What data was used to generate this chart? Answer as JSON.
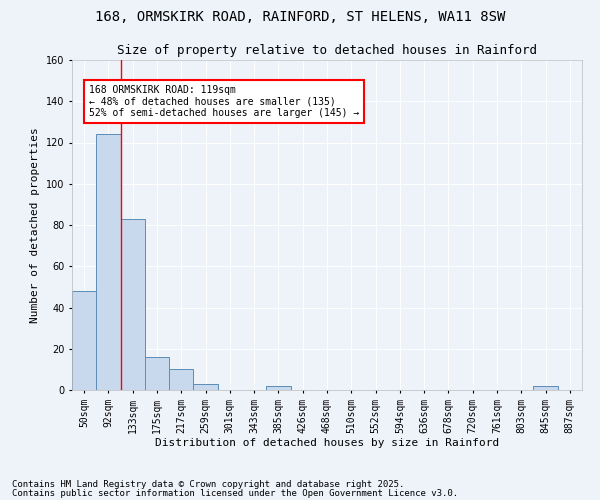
{
  "title": "168, ORMSKIRK ROAD, RAINFORD, ST HELENS, WA11 8SW",
  "subtitle": "Size of property relative to detached houses in Rainford",
  "xlabel": "Distribution of detached houses by size in Rainford",
  "ylabel": "Number of detached properties",
  "bar_color": "#c9d9ed",
  "bar_edge_color": "#5b8db8",
  "background_color": "#eef2f9",
  "grid_color": "#ffffff",
  "categories": [
    "50sqm",
    "92sqm",
    "133sqm",
    "175sqm",
    "217sqm",
    "259sqm",
    "301sqm",
    "343sqm",
    "385sqm",
    "426sqm",
    "468sqm",
    "510sqm",
    "552sqm",
    "594sqm",
    "636sqm",
    "678sqm",
    "720sqm",
    "761sqm",
    "803sqm",
    "845sqm",
    "887sqm"
  ],
  "values": [
    48,
    124,
    83,
    16,
    10,
    3,
    0,
    0,
    2,
    0,
    0,
    0,
    0,
    0,
    0,
    0,
    0,
    0,
    0,
    2,
    0
  ],
  "red_line_x": 1.5,
  "annotation_text": "168 ORMSKIRK ROAD: 119sqm\n← 48% of detached houses are smaller (135)\n52% of semi-detached houses are larger (145) →",
  "annotation_box_color": "white",
  "annotation_box_edge": "red",
  "ylim": [
    0,
    160
  ],
  "yticks": [
    0,
    20,
    40,
    60,
    80,
    100,
    120,
    140,
    160
  ],
  "footnote1": "Contains HM Land Registry data © Crown copyright and database right 2025.",
  "footnote2": "Contains public sector information licensed under the Open Government Licence v3.0.",
  "title_fontsize": 10,
  "subtitle_fontsize": 9,
  "axis_label_fontsize": 8,
  "tick_fontsize": 7,
  "annotation_fontsize": 7,
  "footnote_fontsize": 6.5
}
